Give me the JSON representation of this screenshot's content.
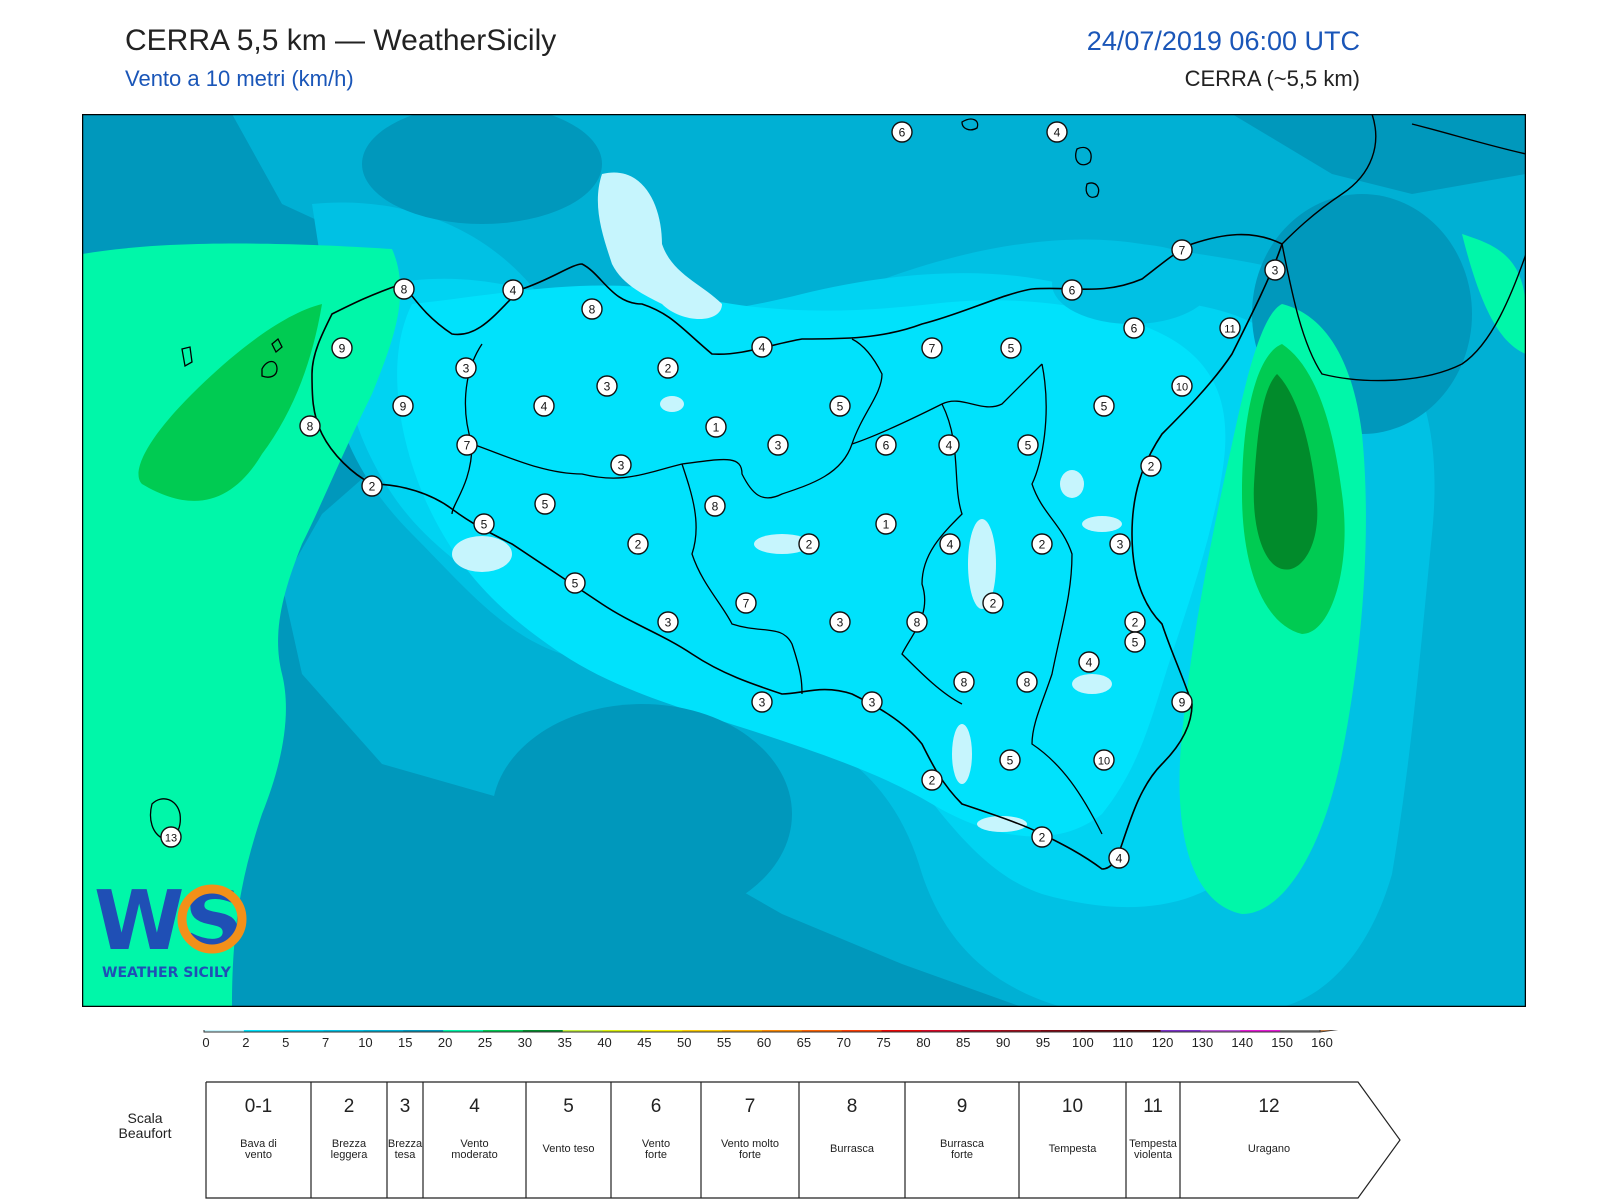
{
  "header": {
    "title": "CERRA 5,5 km — WeatherSicily",
    "subtitle": "Vento a 10 metri (km/h)",
    "datetime": "24/07/2019 06:00 UTC",
    "model": "CERRA (~5,5 km)"
  },
  "logo": {
    "text": "WEATHER SICILY",
    "letters": "WS"
  },
  "colorbar": {
    "ticks": [
      "0",
      "2",
      "5",
      "7",
      "10",
      "15",
      "20",
      "25",
      "30",
      "35",
      "40",
      "45",
      "50",
      "55",
      "60",
      "65",
      "70",
      "75",
      "80",
      "85",
      "90",
      "95",
      "100",
      "110",
      "120",
      "130",
      "140",
      "150",
      "160"
    ],
    "colors": [
      "#c6f5fd",
      "#00e2fc",
      "#00d3f2",
      "#00c1e4",
      "#00b0d4",
      "#0098bc",
      "#00f7a9",
      "#00cb52",
      "#018b2b",
      "#c4f03e",
      "#dbf20d",
      "#fbf202",
      "#fccc03",
      "#fcaf02",
      "#fc8802",
      "#fc6203",
      "#fc3c03",
      "#ea0505",
      "#d60524",
      "#b2041e",
      "#9b0b1a",
      "#7e0510",
      "#630008",
      "#4e0004",
      "#7c30c8",
      "#b856d6",
      "#e31ad4",
      "#848484",
      "#5a5a5a",
      "#060606",
      "#894a2e",
      "#c98148"
    ]
  },
  "beaufort": {
    "label": "Scala Beaufort",
    "levels": [
      {
        "num": "0-1",
        "desc": "Bava di vento"
      },
      {
        "num": "2",
        "desc": "Brezza leggera"
      },
      {
        "num": "3",
        "desc": "Brezza tesa"
      },
      {
        "num": "4",
        "desc": "Vento moderato"
      },
      {
        "num": "5",
        "desc": "Vento teso"
      },
      {
        "num": "6",
        "desc": "Vento forte"
      },
      {
        "num": "7",
        "desc": "Vento molto forte"
      },
      {
        "num": "8",
        "desc": "Burrasca"
      },
      {
        "num": "9",
        "desc": "Burrasca forte"
      },
      {
        "num": "10",
        "desc": "Tempesta"
      },
      {
        "num": "11",
        "desc": "Tempesta violenta"
      },
      {
        "num": "12",
        "desc": "Uragano"
      }
    ]
  },
  "stations": [
    "6",
    "4",
    "8",
    "7",
    "3",
    "4",
    "8",
    "9",
    "6",
    "6",
    "11",
    "3",
    "2",
    "4",
    "7",
    "5",
    "10",
    "9",
    "3",
    "4",
    "5",
    "1",
    "5",
    "8",
    "2",
    "7",
    "3",
    "6",
    "4",
    "5",
    "5",
    "2",
    "5",
    "3",
    "8",
    "1",
    "4",
    "2",
    "2",
    "2",
    "3",
    "5",
    "2",
    "7",
    "3",
    "8",
    "2",
    "5",
    "4",
    "3",
    "8",
    "8",
    "9",
    "3",
    "3",
    "2",
    "5",
    "10",
    "13",
    "2",
    "4"
  ]
}
